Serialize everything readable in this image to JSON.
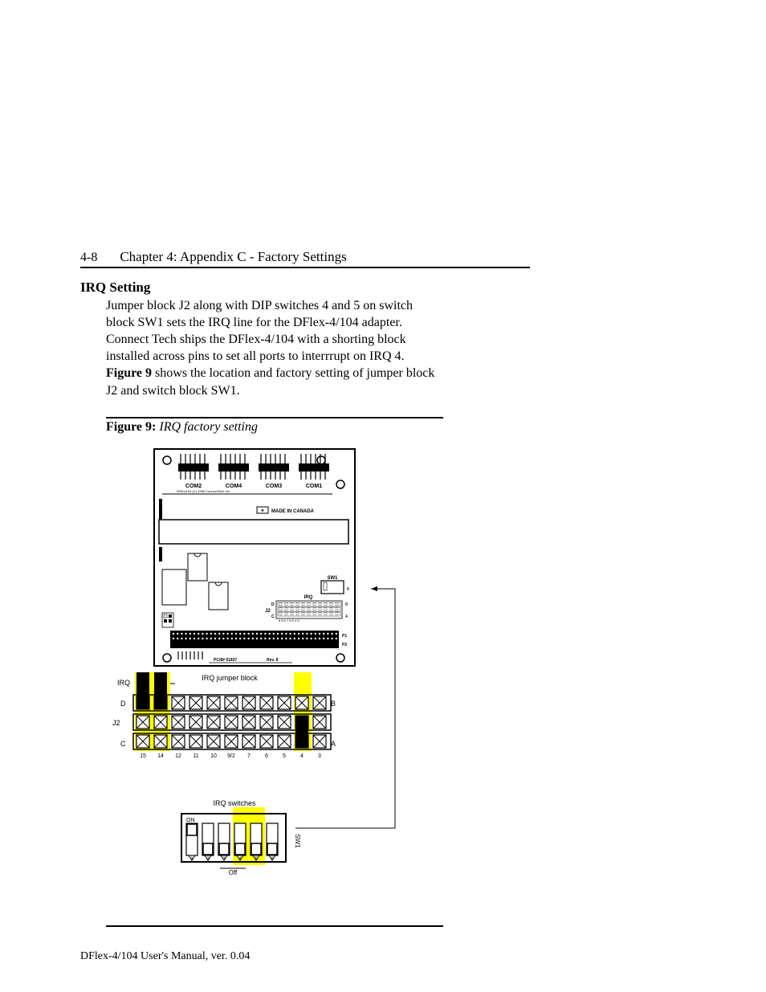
{
  "header": {
    "page_number": "4-8",
    "chapter_title": "Chapter 4: Appendix C - Factory Settings"
  },
  "section": {
    "heading": "IRQ Setting",
    "body_pre": "Jumper block J2 along with DIP switches 4 and 5 on switch block SW1 sets the IRQ line for the DFlex-4/104 adapter.  Connect Tech ships the DFlex-4/104 with a shorting block installed across pins to set all ports to interrrupt on IRQ 4.  ",
    "body_bold": "Figure 9",
    "body_post": " shows the location and factory setting of jumper block J2 and switch block SW1."
  },
  "figure": {
    "label": "Figure 9:",
    "title": "IRQ factory setting",
    "board": {
      "com_labels": [
        "COM2",
        "COM4",
        "COM3",
        "COM1"
      ],
      "silk_text": "DFlex/104 (C) 1996 ConnectTech Inc.",
      "made_in": "MADE IN CANADA",
      "sw1_label": "SW1",
      "irq_label": "IRQ",
      "j2_label": "J2",
      "j2_rows": [
        "D",
        "C"
      ],
      "pcb_text": "PC/8# 91837",
      "rev_text": "Rev. 8",
      "p1_label": "P1",
      "p2_label": "P2"
    },
    "jumper_detail": {
      "title": "IRQ jumper block",
      "left_irq": "IRQ",
      "row_d": "D",
      "row_c": "C",
      "left_j2": "J2",
      "right_b": "B",
      "right_a": "A",
      "pins": [
        "15",
        "14",
        "12",
        "11",
        "10",
        "9/2",
        "7",
        "6",
        "5",
        "4",
        "3"
      ],
      "highlighted_d_cols": [
        0,
        1
      ],
      "highlighted_a_col": 9,
      "yellow_cols": [
        0,
        1,
        9
      ]
    },
    "switch_detail": {
      "title": "IRQ switches",
      "on_label": "ON",
      "off_label": "Off",
      "sw1_label": "SW1",
      "positions": [
        "1",
        "2",
        "3",
        "4",
        "5",
        "6"
      ],
      "states": [
        "on",
        "off",
        "off",
        "off",
        "off",
        "off"
      ],
      "yellow_positions": [
        3,
        4
      ]
    },
    "colors": {
      "yellow": "#ffff00",
      "black": "#000000",
      "white": "#ffffff",
      "silk": "#000000"
    }
  },
  "footer": {
    "text": "DFlex-4/104 User's Manual, ver. 0.04"
  }
}
